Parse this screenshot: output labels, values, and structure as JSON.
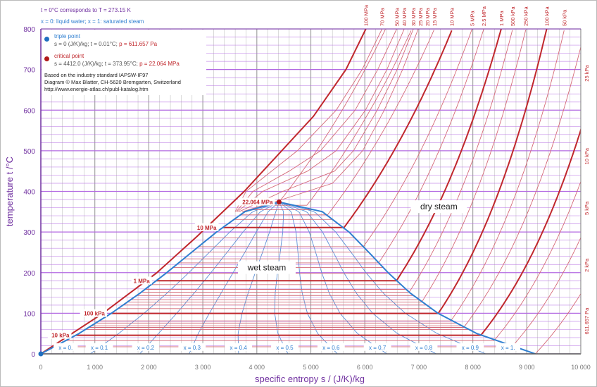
{
  "notes": {
    "line1": "t = 0°C corresponds to  T = 273.15 K",
    "line2": "x = 0: liquid water;  x = 1: saturated steam"
  },
  "legend": {
    "triple_title": "triple point",
    "triple_values": "s = 0 (J/K)/kg;  t = 0.01°C;",
    "triple_pressure": "p = 611.657 Pa",
    "critical_title": "critical point",
    "critical_values": "s = 4412.0 (J/K)/kg;  t = 373.95°C;",
    "critical_pressure": "p = 22.064 MPa",
    "source1": "Based on the industry standard IAPSW-IF97",
    "source2": "Diagram © Max Blatter, CH-5620 Bremgarten, Switzerland",
    "source3": "http://www.energie-atlas.ch/publ-katalog.htm"
  },
  "colors": {
    "isobar": "#c0282d",
    "isobar_thin": "#d46a78",
    "saturation": "#2f7fd0",
    "quality": "#5b8fd6",
    "axis": "#7030a0",
    "grid_h": "#b36ae2",
    "grid_v": "#9a9a9a"
  },
  "chart_data": {
    "type": "line",
    "title": "",
    "xlabel": "specific entropy  s / (J/K)/kg",
    "ylabel": "temperature  t /°C",
    "xlim": [
      0,
      10000
    ],
    "ylim": [
      0,
      800
    ],
    "xticks": [
      "0",
      "1 000",
      "2 000",
      "3 000",
      "4 000",
      "5 000",
      "6 000",
      "7 000",
      "8 000",
      "9 000",
      "10 000"
    ],
    "yticks": [
      "0",
      "100",
      "200",
      "300",
      "400",
      "500",
      "600",
      "700",
      "800"
    ],
    "regions": {
      "wet": "wet steam",
      "dry": "dry steam"
    },
    "saturation_liquid": [
      [
        0,
        0
      ],
      [
        704,
        50
      ],
      [
        1307,
        100
      ],
      [
        1842,
        150
      ],
      [
        2331,
        200
      ],
      [
        2793,
        250
      ],
      [
        3255,
        300
      ],
      [
        3778,
        350
      ],
      [
        4412,
        373.95
      ]
    ],
    "saturation_vapor": [
      [
        4412,
        373.95
      ],
      [
        5212,
        350
      ],
      [
        5706,
        300
      ],
      [
        6074,
        250
      ],
      [
        6431,
        200
      ],
      [
        6838,
        150
      ],
      [
        7355,
        100
      ],
      [
        8075,
        50
      ],
      [
        9155,
        0.01
      ]
    ],
    "quality_labels": [
      "x = 0.",
      "x = 0.1",
      "x = 0.2",
      "x = 0.3",
      "x = 0.4",
      "x = 0.5",
      "x = 0.6",
      "x = 0.7",
      "x = 0.8",
      "x = 0.9",
      "x = 1."
    ],
    "isobars_subcritical": [
      {
        "label": "22.064 MPa",
        "t_sat": 373.95,
        "s_vap": 4412,
        "cp": 3.9,
        "thick": false,
        "left_label": true
      },
      {
        "label": "20 MPa",
        "t_sat": 365.8,
        "s_vap": 4927,
        "cp": 3.75,
        "thick": false
      },
      {
        "label": "15 MPa",
        "t_sat": 342.2,
        "s_vap": 5310,
        "cp": 3.56,
        "thick": false
      },
      {
        "label": "10 MPa",
        "t_sat": 311.0,
        "s_vap": 5614,
        "cp": 3.3,
        "thick": true,
        "left_label": true
      },
      {
        "label": "5 MPa",
        "t_sat": 264.0,
        "s_vap": 5973,
        "cp": 2.91,
        "thick": false
      },
      {
        "label": "2.5 MPa",
        "t_sat": 224.0,
        "s_vap": 6256,
        "cp": 2.53,
        "thick": false
      },
      {
        "label": "1 MPa",
        "t_sat": 179.9,
        "s_vap": 6585,
        "cp": 2.25,
        "thick": true,
        "left_label": true
      },
      {
        "label": "500 kPa",
        "t_sat": 151.8,
        "s_vap": 6821,
        "cp": 2.07,
        "thick": false
      },
      {
        "label": "250 kPa",
        "t_sat": 127.4,
        "s_vap": 7052,
        "cp": 1.96,
        "thick": false
      },
      {
        "label": "100 kPa",
        "t_sat": 99.6,
        "s_vap": 7359,
        "cp": 1.9,
        "thick": true,
        "left_label": true
      },
      {
        "label": "50 kPa",
        "t_sat": 81.3,
        "s_vap": 7593,
        "cp": 1.9,
        "thick": false
      },
      {
        "label": "25 kPa",
        "t_sat": 65.0,
        "s_vap": 7830,
        "cp": 1.95,
        "thick": false
      },
      {
        "label": "10 kPa",
        "t_sat": 45.8,
        "s_vap": 8148,
        "cp": 1.95,
        "thick": true,
        "left_label": true
      },
      {
        "label": "5 kPa",
        "t_sat": 32.9,
        "s_vap": 8394,
        "cp": 1.95,
        "thick": false
      },
      {
        "label": "2 kPa",
        "t_sat": 17.5,
        "s_vap": 8723,
        "cp": 1.95,
        "thick": false
      },
      {
        "label": "611.657 Pa",
        "t_sat": 0.01,
        "s_vap": 9155,
        "cp": 1.95,
        "thick": false
      }
    ],
    "isobars_in_dome_extra_t": [
      60.1,
      69.1,
      75.9,
      111.4,
      120.2,
      133.5,
      143.6,
      158.8,
      170.4,
      198.3,
      212.4,
      233.9,
      250.4,
      285.8,
      330.9,
      355.0
    ],
    "isobars_supercritical": [
      {
        "label": "100 MPa",
        "thick": true,
        "points": [
          [
            0,
            0
          ],
          [
            1150,
            100
          ],
          [
            2150,
            200
          ],
          [
            2900,
            290
          ],
          [
            3767,
            400
          ],
          [
            4460,
            500
          ],
          [
            5050,
            585
          ],
          [
            5650,
            700
          ],
          [
            6020,
            800
          ]
        ]
      },
      {
        "label": "70 MPa",
        "thick": false,
        "points": [
          [
            3600,
            350
          ],
          [
            3800,
            400
          ],
          [
            4750,
            500
          ],
          [
            5470,
            600
          ],
          [
            5950,
            700
          ],
          [
            6320,
            800
          ]
        ]
      },
      {
        "label": "50 MPa",
        "thick": false,
        "points": [
          [
            3620,
            350
          ],
          [
            3930,
            400
          ],
          [
            4600,
            450
          ],
          [
            5180,
            500
          ],
          [
            5820,
            600
          ],
          [
            6240,
            700
          ],
          [
            6590,
            800
          ]
        ]
      },
      {
        "label": "40 MPa",
        "thick": false,
        "points": [
          [
            3640,
            350
          ],
          [
            4110,
            400
          ],
          [
            4940,
            450
          ],
          [
            5470,
            500
          ],
          [
            6010,
            600
          ],
          [
            6410,
            700
          ],
          [
            6730,
            800
          ]
        ]
      },
      {
        "label": "30 MPa",
        "thick": false,
        "points": [
          [
            3670,
            350
          ],
          [
            4480,
            400
          ],
          [
            5440,
            450
          ],
          [
            5790,
            500
          ],
          [
            6230,
            600
          ],
          [
            6600,
            700
          ],
          [
            6900,
            800
          ]
        ]
      },
      {
        "label": "25 MPa",
        "thick": false,
        "points": [
          [
            3730,
            350
          ],
          [
            4470,
            380
          ],
          [
            5400,
            420
          ],
          [
            5960,
            500
          ],
          [
            6360,
            600
          ],
          [
            6700,
            700
          ],
          [
            6990,
            800
          ]
        ]
      }
    ]
  }
}
